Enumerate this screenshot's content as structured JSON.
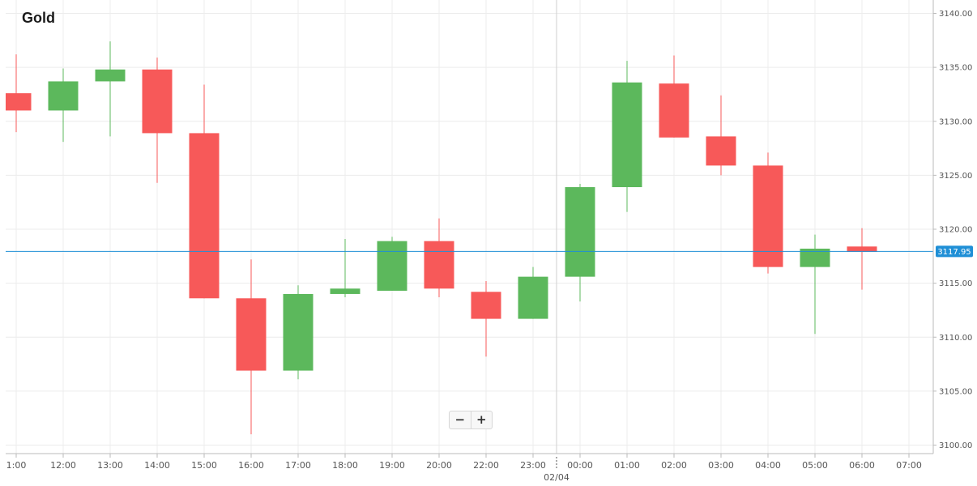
{
  "colors": {
    "up": "#5cb85c",
    "down": "#f75959",
    "price_line": "#1f8fd6",
    "grid": "#ececec",
    "axis_text": "#555555"
  },
  "zoom": {
    "minus_label": "−",
    "plus_label": "+"
  },
  "chart_data": {
    "type": "candlestick",
    "title": "Gold",
    "ylim": [
      3099.3,
      3141.6
    ],
    "y_ticks": [
      "3100.00",
      "3105.00",
      "3110.00",
      "3115.00",
      "3120.00",
      "3125.00",
      "3130.00",
      "3135.00",
      "3140.00"
    ],
    "current_price": 3117.95,
    "current_price_label": "3117.95",
    "x_labels": [
      "1:00",
      "12:00",
      "13:00",
      "14:00",
      "15:00",
      "16:00",
      "17:00",
      "18:00",
      "19:00",
      "20:00",
      "22:00",
      "23:00",
      "00:00",
      "01:00",
      "02:00",
      "03:00",
      "04:00",
      "05:00",
      "06:00",
      "07:00"
    ],
    "date_separator": {
      "after": "23:00",
      "label": "02/04"
    },
    "grid": true,
    "candles": [
      {
        "x": "1:00",
        "open": 3132.6,
        "high": 3136.2,
        "low": 3129.0,
        "close": 3131.0
      },
      {
        "x": "12:00",
        "open": 3131.0,
        "high": 3134.9,
        "low": 3128.1,
        "close": 3133.7
      },
      {
        "x": "13:00",
        "open": 3133.7,
        "high": 3137.4,
        "low": 3128.6,
        "close": 3134.8
      },
      {
        "x": "14:00",
        "open": 3134.8,
        "high": 3135.9,
        "low": 3124.3,
        "close": 3128.9
      },
      {
        "x": "15:00",
        "open": 3128.9,
        "high": 3133.4,
        "low": 3113.6,
        "close": 3113.6
      },
      {
        "x": "16:00",
        "open": 3113.6,
        "high": 3117.2,
        "low": 3101.0,
        "close": 3106.9
      },
      {
        "x": "17:00",
        "open": 3106.9,
        "high": 3114.8,
        "low": 3106.1,
        "close": 3114.0
      },
      {
        "x": "18:00",
        "open": 3114.0,
        "high": 3119.1,
        "low": 3113.7,
        "close": 3114.5
      },
      {
        "x": "19:00",
        "open": 3114.3,
        "high": 3119.3,
        "low": 3114.3,
        "close": 3118.9
      },
      {
        "x": "20:00",
        "open": 3118.9,
        "high": 3121.0,
        "low": 3113.7,
        "close": 3114.5
      },
      {
        "x": "22:00",
        "open": 3114.2,
        "high": 3115.2,
        "low": 3108.2,
        "close": 3111.7
      },
      {
        "x": "23:00",
        "open": 3111.7,
        "high": 3116.5,
        "low": 3111.7,
        "close": 3115.6
      },
      {
        "x": "00:00",
        "open": 3115.6,
        "high": 3124.2,
        "low": 3113.3,
        "close": 3123.9
      },
      {
        "x": "01:00",
        "open": 3123.9,
        "high": 3135.6,
        "low": 3121.6,
        "close": 3133.6
      },
      {
        "x": "02:00",
        "open": 3133.5,
        "high": 3136.1,
        "low": 3128.5,
        "close": 3128.5
      },
      {
        "x": "03:00",
        "open": 3128.6,
        "high": 3132.4,
        "low": 3125.0,
        "close": 3125.9
      },
      {
        "x": "04:00",
        "open": 3125.9,
        "high": 3127.1,
        "low": 3115.9,
        "close": 3116.5
      },
      {
        "x": "05:00",
        "open": 3116.5,
        "high": 3119.5,
        "low": 3110.3,
        "close": 3118.2
      },
      {
        "x": "06:00",
        "open": 3118.4,
        "high": 3120.1,
        "low": 3114.4,
        "close": 3117.9
      }
    ]
  }
}
